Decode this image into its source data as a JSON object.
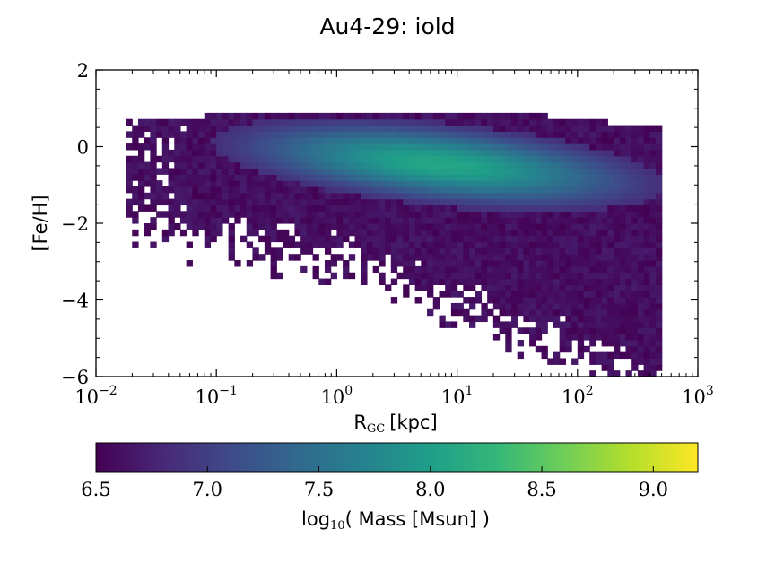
{
  "chart_data": {
    "type": "heatmap",
    "title": "Au4-29: iold",
    "xlabel_main": "R",
    "xlabel_sub": "GC",
    "xlabel_unit": "[kpc]",
    "ylabel": "[Fe/H]",
    "xscale": "log",
    "xlim": [
      0.01,
      1000
    ],
    "ylim": [
      -6,
      2
    ],
    "x_ticks": [
      {
        "value": 0.01,
        "base": "10",
        "exp": "−2"
      },
      {
        "value": 0.1,
        "base": "10",
        "exp": "−1"
      },
      {
        "value": 1,
        "base": "10",
        "exp": "0"
      },
      {
        "value": 10,
        "base": "10",
        "exp": "1"
      },
      {
        "value": 100,
        "base": "10",
        "exp": "2"
      },
      {
        "value": 1000,
        "base": "10",
        "exp": "3"
      }
    ],
    "y_ticks": [
      {
        "value": 2,
        "label": "2"
      },
      {
        "value": 0,
        "label": "0"
      },
      {
        "value": -2,
        "label": "−2"
      },
      {
        "value": -4,
        "label": "−4"
      },
      {
        "value": -6,
        "label": "−6"
      }
    ],
    "colorbar": {
      "colormap": "viridis",
      "range": [
        6.5,
        9.2
      ],
      "ticks": [
        "6.5",
        "7.0",
        "7.5",
        "8.0",
        "8.5",
        "9.0"
      ],
      "label_prefix": "log",
      "label_sub": "10",
      "label_rest": "( Mass [Msun] )"
    },
    "viridis_stops": [
      "#440154",
      "#482878",
      "#3e4a89",
      "#31688e",
      "#26828e",
      "#1f9e89",
      "#35b779",
      "#6ece58",
      "#b5de2b",
      "#fde725"
    ],
    "grid": false,
    "distribution": {
      "peak_log10_r": 0.85,
      "peak_feh": -0.45,
      "peak_log10_mass": 8.1,
      "ridge_slope_feh_per_dex": -0.3,
      "core_log10_r_range": [
        -0.85,
        2.2
      ],
      "core_feh_range": [
        -2.1,
        0.6
      ],
      "outer_log10_r_range": [
        -1.75,
        2.7
      ],
      "outer_feh_range": [
        -5.9,
        0.85
      ]
    }
  }
}
